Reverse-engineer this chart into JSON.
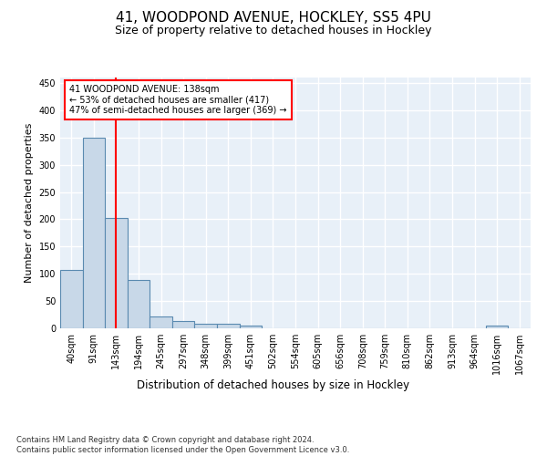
{
  "title": "41, WOODPOND AVENUE, HOCKLEY, SS5 4PU",
  "subtitle": "Size of property relative to detached houses in Hockley",
  "xlabel": "Distribution of detached houses by size in Hockley",
  "ylabel": "Number of detached properties",
  "bar_color": "#c8d8e8",
  "bar_edge_color": "#5a8ab0",
  "redline_x": 2,
  "annotation_text": "41 WOODPOND AVENUE: 138sqm\n← 53% of detached houses are smaller (417)\n47% of semi-detached houses are larger (369) →",
  "annotation_box_color": "white",
  "annotation_box_edge": "red",
  "footer": "Contains HM Land Registry data © Crown copyright and database right 2024.\nContains public sector information licensed under the Open Government Licence v3.0.",
  "categories": [
    "40sqm",
    "91sqm",
    "143sqm",
    "194sqm",
    "245sqm",
    "297sqm",
    "348sqm",
    "399sqm",
    "451sqm",
    "502sqm",
    "554sqm",
    "605sqm",
    "656sqm",
    "708sqm",
    "759sqm",
    "810sqm",
    "862sqm",
    "913sqm",
    "964sqm",
    "1016sqm",
    "1067sqm"
  ],
  "values": [
    107,
    349,
    203,
    88,
    22,
    13,
    8,
    8,
    5,
    0,
    0,
    0,
    0,
    0,
    0,
    0,
    0,
    0,
    0,
    5,
    0
  ],
  "ylim": [
    0,
    460
  ],
  "background_color": "#e8f0f8",
  "grid_color": "white",
  "title_fontsize": 11,
  "subtitle_fontsize": 9,
  "tick_fontsize": 7,
  "ylabel_fontsize": 8,
  "xlabel_fontsize": 8.5,
  "annotation_fontsize": 7,
  "footer_fontsize": 6
}
